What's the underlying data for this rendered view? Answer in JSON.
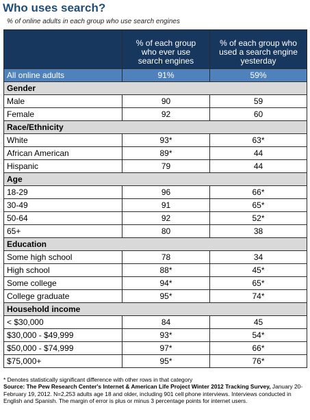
{
  "title": "Who uses search?",
  "subtitle": "% of online adults in each group who use search engines",
  "columns": [
    "% of each group who ever use search engines",
    "% of each group who used a search engine yesterday"
  ],
  "columns_lines": [
    [
      "% of each group",
      "who ever use",
      "search engines"
    ],
    [
      "% of each group who",
      "used a search engine",
      "yesterday"
    ]
  ],
  "total": {
    "label": "All online adults",
    "ever": "91%",
    "yesterday": "59%"
  },
  "sections": [
    {
      "name": "Gender",
      "rows": [
        {
          "label": "Male",
          "ever": "90",
          "yesterday": "59"
        },
        {
          "label": "Female",
          "ever": "92",
          "yesterday": "60"
        }
      ]
    },
    {
      "name": "Race/Ethnicity",
      "rows": [
        {
          "label": "White",
          "ever": "93*",
          "yesterday": "63*"
        },
        {
          "label": "African American",
          "ever": "89*",
          "yesterday": "44"
        },
        {
          "label": "Hispanic",
          "ever": "79",
          "yesterday": "44"
        }
      ]
    },
    {
      "name": "Age",
      "rows": [
        {
          "label": "18-29",
          "ever": "96",
          "yesterday": "66*"
        },
        {
          "label": "30-49",
          "ever": "91",
          "yesterday": "65*"
        },
        {
          "label": "50-64",
          "ever": "92",
          "yesterday": "52*"
        },
        {
          "label": "65+",
          "ever": "80",
          "yesterday": "38"
        }
      ]
    },
    {
      "name": "Education",
      "rows": [
        {
          "label": "Some high school",
          "ever": "78",
          "yesterday": "34"
        },
        {
          "label": "High school",
          "ever": "88*",
          "yesterday": "45*"
        },
        {
          "label": "Some college",
          "ever": "94*",
          "yesterday": "65*"
        },
        {
          "label": "College graduate",
          "ever": "95*",
          "yesterday": "74*"
        }
      ]
    },
    {
      "name": "Household income",
      "rows": [
        {
          "label": "< $30,000",
          "ever": "84",
          "yesterday": "45"
        },
        {
          "label": "$30,000 - $49,999",
          "ever": "93*",
          "yesterday": "54*"
        },
        {
          "label": "$50,000 - $74,999",
          "ever": "97*",
          "yesterday": "66*"
        },
        {
          "label": "$75,000+",
          "ever": "95*",
          "yesterday": "76*"
        }
      ]
    }
  ],
  "footnote": "* Denotes statistically significant difference with other rows in that category",
  "source_label": "Source:",
  "source_bold": "The Pew Research Center's Internet & American Life Project Winter 2012 Tracking Survey,",
  "source_text": " January 20-February 19, 2012. N=2,253 adults age 18 and older, including 901 cell phone interviews. Interviews conducted in English and Spanish. The margin of error is plus or minus 3 percentage points for internet users."
}
